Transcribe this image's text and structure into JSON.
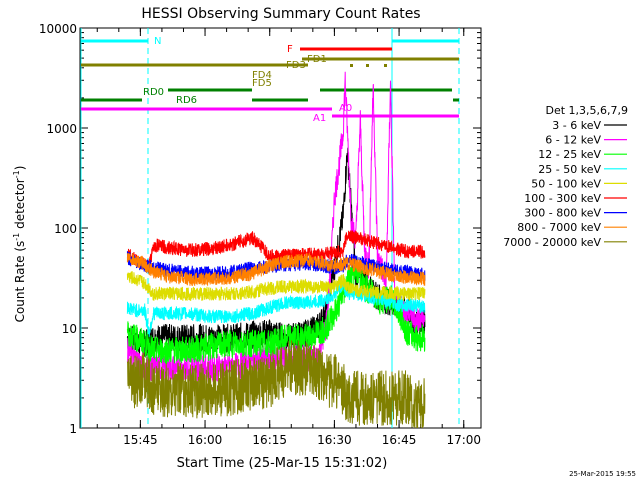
{
  "chart_data": {
    "type": "line",
    "title": "HESSI Observing Summary Count Rates",
    "xlabel": "Start Time (25-Mar-15 15:31:02)",
    "ylabel_main": "Count Rate (s",
    "ylabel_sup1": "-1",
    "ylabel_mid": " detector",
    "ylabel_sup2": "-1",
    "ylabel_end": ")",
    "yscale": "log",
    "ylim": [
      1,
      10000
    ],
    "xlim_minutes_after_1531": [
      0,
      93
    ],
    "x_ticks": [
      {
        "label": "15:45",
        "minute": 14
      },
      {
        "label": "16:00",
        "minute": 29
      },
      {
        "label": "16:15",
        "minute": 44
      },
      {
        "label": "16:30",
        "minute": 59
      },
      {
        "label": "16:45",
        "minute": 74
      },
      {
        "label": "17:00",
        "minute": 89
      }
    ],
    "y_ticks": [
      {
        "label": "1",
        "value": 1
      },
      {
        "label": "10",
        "value": 10
      },
      {
        "label": "100",
        "value": 100
      },
      {
        "label": "1000",
        "value": 1000
      },
      {
        "label": "10000",
        "value": 10000
      }
    ],
    "legend_title": "Det 1,3,5,6,7,9",
    "legend_placement": "right",
    "series": [
      {
        "name": "3 - 6 keV",
        "color": "#000000",
        "x": [
          11,
          15,
          17,
          25,
          35,
          44,
          48,
          53,
          55,
          57,
          58,
          59,
          60,
          61,
          62,
          64,
          66,
          68,
          70,
          72,
          74,
          76,
          77,
          78,
          80
        ],
        "values": [
          8,
          7,
          8,
          8,
          8,
          9,
          8,
          9,
          10,
          14,
          25,
          40,
          70,
          130,
          600,
          32,
          30,
          22,
          20,
          18,
          16,
          15,
          12,
          11,
          12
        ]
      },
      {
        "name": "6 - 12 keV",
        "color": "#ff00ff",
        "x": [
          11,
          15,
          17,
          25,
          35,
          44,
          48,
          53,
          55,
          57,
          58,
          59,
          60,
          61,
          61.5,
          63,
          64,
          65,
          66,
          67,
          68,
          69,
          70,
          71,
          72,
          73,
          74,
          76,
          78,
          80
        ],
        "values": [
          6,
          4,
          4,
          4,
          4,
          5,
          5,
          5,
          5,
          10,
          30,
          200,
          400,
          900,
          3000,
          100,
          80,
          1200,
          60,
          40,
          2800,
          50,
          40,
          25,
          3000,
          20,
          15,
          14,
          12,
          13
        ]
      },
      {
        "name": "12 - 25 keV",
        "color": "#00ff00",
        "x": [
          11,
          15,
          17,
          25,
          35,
          44,
          48,
          53,
          55,
          57,
          58,
          59,
          60,
          61,
          62,
          64,
          66,
          68,
          70,
          72,
          74,
          76,
          78,
          80
        ],
        "values": [
          9,
          7,
          6,
          6,
          7,
          7,
          8,
          8,
          9,
          10,
          12,
          14,
          17,
          22,
          30,
          40,
          25,
          22,
          18,
          20,
          14,
          9,
          8,
          8
        ]
      },
      {
        "name": "25 - 50 keV",
        "color": "#00ffff",
        "x": [
          11,
          13,
          15,
          16,
          17,
          20,
          25,
          30,
          35,
          40,
          44,
          48,
          53,
          57,
          59,
          61,
          62,
          64,
          68,
          72,
          74,
          76,
          78,
          80
        ],
        "values": [
          16,
          15,
          15,
          9,
          14,
          14,
          14,
          13,
          13,
          14,
          16,
          18,
          18,
          19,
          22,
          27,
          22,
          22,
          20,
          18,
          17,
          17,
          17,
          16
        ]
      },
      {
        "name": "50 - 100 keV",
        "color": "#dddd00",
        "x": [
          11,
          15,
          17,
          25,
          35,
          40,
          44,
          48,
          53,
          57,
          59,
          61,
          62,
          64,
          68,
          72,
          76,
          80
        ],
        "values": [
          33,
          28,
          22,
          22,
          22,
          23,
          25,
          26,
          26,
          25,
          26,
          30,
          25,
          24,
          23,
          22,
          22,
          22
        ]
      },
      {
        "name": "100 - 300 keV",
        "color": "#ff0000",
        "x": [
          11,
          14,
          16,
          17,
          20,
          25,
          30,
          35,
          40,
          44,
          48,
          53,
          57,
          59,
          61,
          62,
          64,
          68,
          72,
          76,
          80
        ],
        "values": [
          55,
          45,
          40,
          68,
          64,
          60,
          62,
          68,
          80,
          52,
          53,
          54,
          55,
          56,
          60,
          85,
          80,
          72,
          64,
          58,
          58
        ]
      },
      {
        "name": "300 - 800 keV",
        "color": "#0000ff",
        "x": [
          11,
          14,
          17,
          20,
          25,
          30,
          35,
          40,
          44,
          48,
          53,
          57,
          59,
          61,
          62,
          64,
          68,
          72,
          76,
          80
        ],
        "values": [
          50,
          44,
          40,
          38,
          36,
          35,
          36,
          40,
          41,
          43,
          44,
          42,
          40,
          42,
          48,
          46,
          42,
          38,
          36,
          34
        ]
      },
      {
        "name": "800 - 7000 keV",
        "color": "#ff8000",
        "x": [
          11,
          14,
          17,
          20,
          25,
          30,
          35,
          40,
          44,
          48,
          53,
          57,
          59,
          61,
          62,
          64,
          68,
          72,
          76,
          80
        ],
        "values": [
          52,
          46,
          37,
          33,
          31,
          31,
          32,
          35,
          42,
          46,
          48,
          44,
          42,
          44,
          44,
          42,
          38,
          34,
          32,
          31
        ]
      },
      {
        "name": "7000 - 20000 keV",
        "color": "#808000",
        "x": [
          11,
          15,
          17,
          25,
          35,
          44,
          48,
          53,
          55,
          57,
          59,
          61,
          62,
          64,
          68,
          72,
          74,
          76,
          78,
          80
        ],
        "values": [
          3,
          3,
          2.5,
          2.3,
          2.5,
          3,
          4,
          4,
          3.5,
          3,
          3,
          2.5,
          2,
          2,
          2,
          2,
          2,
          2,
          1.5,
          2
        ]
      }
    ],
    "flag_labels": [
      {
        "text": "N",
        "color": "#00ffff"
      },
      {
        "text": "F",
        "color": "#ff0000"
      },
      {
        "text": "FD1",
        "color": "#808000"
      },
      {
        "text": "FD3",
        "color": "#808000"
      },
      {
        "text": "FD4",
        "color": "#808000"
      },
      {
        "text": "FD5",
        "color": "#808000"
      },
      {
        "text": "RD0",
        "color": "#008000"
      },
      {
        "text": "RD6",
        "color": "#008000"
      },
      {
        "text": "A0",
        "color": "#ff00ff"
      },
      {
        "text": "A1",
        "color": "#ff00ff"
      }
    ],
    "footer_date": "25-Mar-2015 19:55"
  }
}
